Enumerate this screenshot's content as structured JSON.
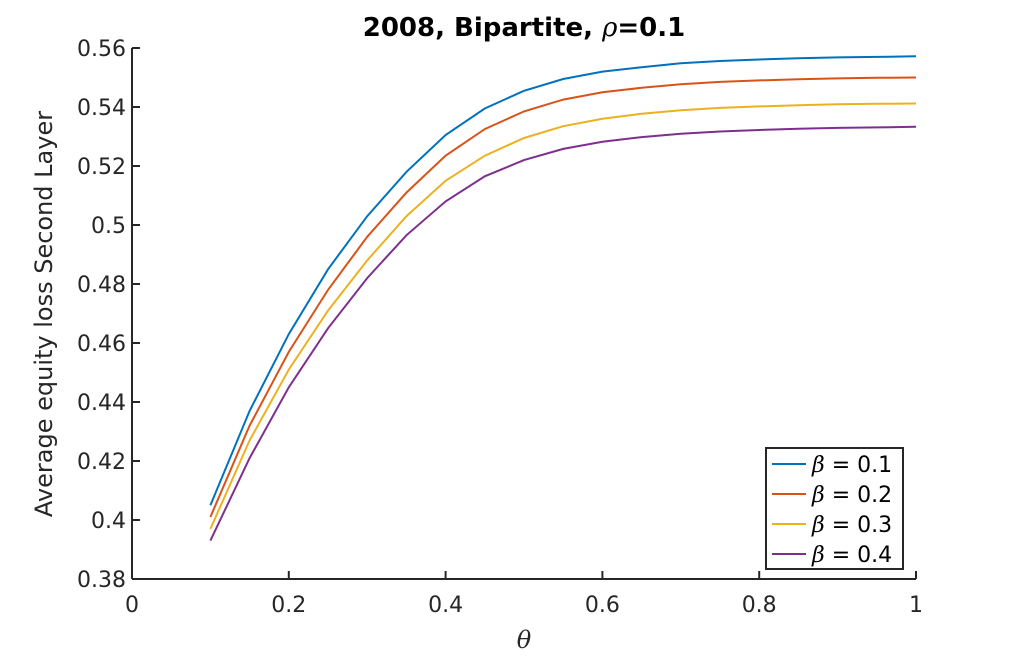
{
  "chart_data": {
    "type": "line",
    "title": {
      "prefix": "2008, Bipartite, ",
      "symbol": "ρ",
      "suffix": "=0.1"
    },
    "xlabel": "θ",
    "ylabel": "Average equity loss Second Layer",
    "xlim": [
      0,
      1
    ],
    "ylim": [
      0.38,
      0.56
    ],
    "xticks": [
      {
        "value": 0,
        "label": "0"
      },
      {
        "value": 0.2,
        "label": "0.2"
      },
      {
        "value": 0.4,
        "label": "0.4"
      },
      {
        "value": 0.6,
        "label": "0.6"
      },
      {
        "value": 0.8,
        "label": "0.8"
      },
      {
        "value": 1,
        "label": "1"
      }
    ],
    "yticks": [
      {
        "value": 0.38,
        "label": "0.38"
      },
      {
        "value": 0.4,
        "label": "0.4"
      },
      {
        "value": 0.42,
        "label": "0.42"
      },
      {
        "value": 0.44,
        "label": "0.44"
      },
      {
        "value": 0.46,
        "label": "0.46"
      },
      {
        "value": 0.48,
        "label": "0.48"
      },
      {
        "value": 0.5,
        "label": "0.5"
      },
      {
        "value": 0.52,
        "label": "0.52"
      },
      {
        "value": 0.54,
        "label": "0.54"
      },
      {
        "value": 0.56,
        "label": "0.56"
      }
    ],
    "grid": false,
    "legend_position": "bottom-right",
    "x": [
      0.1,
      0.15,
      0.2,
      0.25,
      0.3,
      0.35,
      0.4,
      0.45,
      0.5,
      0.55,
      0.6,
      0.65,
      0.7,
      0.75,
      0.8,
      0.85,
      0.9,
      0.95,
      1.0
    ],
    "series": [
      {
        "symbol": "β",
        "value_label": " = 0.1",
        "color": "#0072BD",
        "values": [
          0.405,
          0.437,
          0.463,
          0.485,
          0.503,
          0.518,
          0.5305,
          0.5395,
          0.5455,
          0.5495,
          0.552,
          0.5535,
          0.5548,
          0.5556,
          0.5561,
          0.5565,
          0.5568,
          0.557,
          0.5572
        ]
      },
      {
        "symbol": "β",
        "value_label": " = 0.2",
        "color": "#D95319",
        "values": [
          0.401,
          0.432,
          0.457,
          0.478,
          0.496,
          0.511,
          0.5235,
          0.5325,
          0.5385,
          0.5425,
          0.545,
          0.5465,
          0.5477,
          0.5485,
          0.549,
          0.5494,
          0.5497,
          0.5499,
          0.55
        ]
      },
      {
        "symbol": "β",
        "value_label": " = 0.3",
        "color": "#EDB120",
        "values": [
          0.397,
          0.427,
          0.451,
          0.471,
          0.488,
          0.503,
          0.515,
          0.5235,
          0.5295,
          0.5335,
          0.536,
          0.5377,
          0.5389,
          0.5397,
          0.5402,
          0.5406,
          0.5409,
          0.5411,
          0.5412
        ]
      },
      {
        "symbol": "β",
        "value_label": " = 0.4",
        "color": "#7E2F8E",
        "values": [
          0.393,
          0.421,
          0.445,
          0.465,
          0.482,
          0.4965,
          0.508,
          0.5165,
          0.522,
          0.5258,
          0.5282,
          0.5298,
          0.5309,
          0.5317,
          0.5322,
          0.5326,
          0.5329,
          0.5331,
          0.5333
        ]
      }
    ]
  }
}
